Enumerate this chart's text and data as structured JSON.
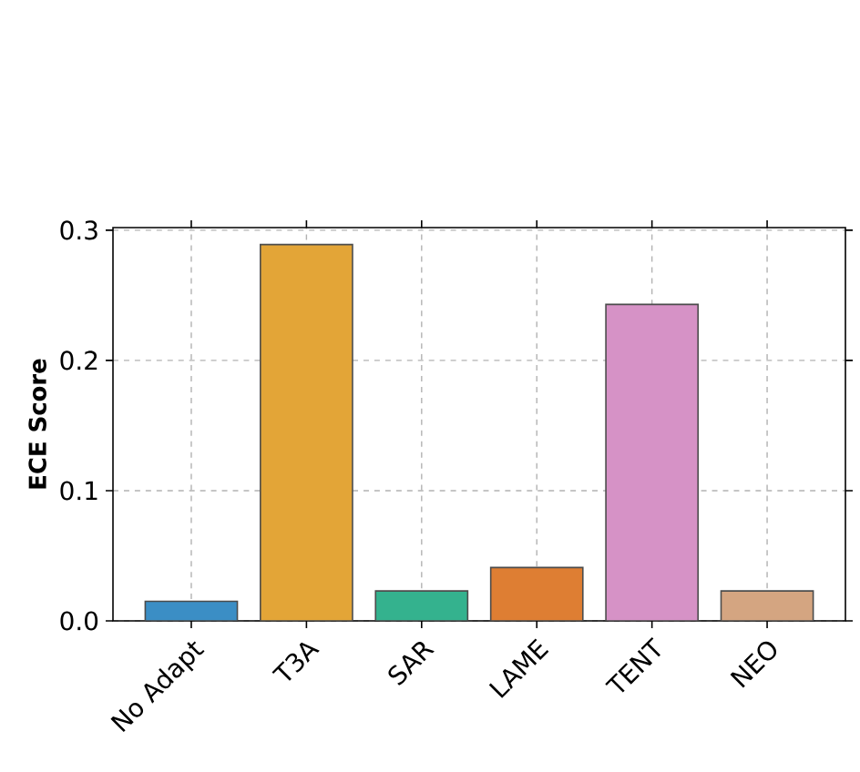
{
  "chart_data": {
    "type": "bar",
    "ylabel": "ECE Score",
    "categories": [
      "No Adapt",
      "T3A",
      "SAR",
      "LAME",
      "TENT",
      "NEO"
    ],
    "values": [
      0.015,
      0.289,
      0.023,
      0.041,
      0.243,
      0.023
    ],
    "colors": [
      "#3b8ec5",
      "#e3a537",
      "#34b28e",
      "#de7e33",
      "#d692c6",
      "#d4a581"
    ],
    "ylim": [
      0,
      0.302
    ],
    "yticks": [
      {
        "value": 0,
        "label": "0.0"
      },
      0.1,
      0.2,
      0.3
    ],
    "grid": true,
    "line_style": "dashed"
  }
}
